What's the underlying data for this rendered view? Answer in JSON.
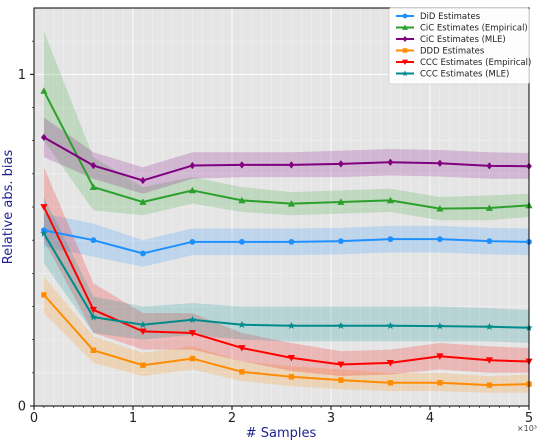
{
  "chart_data": {
    "type": "line",
    "title": "",
    "xlabel": "# Samples",
    "ylabel": "Relative abs. bias",
    "x_multiplier_label": "×10³",
    "xlim": [
      0,
      5
    ],
    "ylim": [
      0,
      1.2
    ],
    "x_ticks": [
      "0",
      "1",
      "2",
      "3",
      "4",
      "5"
    ],
    "y_ticks": [
      "0",
      "1"
    ],
    "grid": true,
    "legend_position": "top-right",
    "x": [
      0.1,
      0.6,
      1.1,
      1.6,
      2.1,
      2.6,
      3.1,
      3.6,
      4.1,
      4.6,
      5.0
    ],
    "series": [
      {
        "name": "DiD Estimates",
        "color": "#1e90ff",
        "marker": "circle",
        "values": [
          0.53,
          0.5,
          0.46,
          0.495,
          0.495,
          0.495,
          0.497,
          0.503,
          0.503,
          0.497,
          0.495
        ],
        "lower": [
          0.48,
          0.45,
          0.42,
          0.455,
          0.455,
          0.455,
          0.457,
          0.463,
          0.463,
          0.457,
          0.455
        ],
        "upper": [
          0.58,
          0.55,
          0.5,
          0.535,
          0.535,
          0.535,
          0.537,
          0.543,
          0.543,
          0.537,
          0.535
        ]
      },
      {
        "name": "CiC Estimates (Empirical)",
        "color": "#2ca02c",
        "marker": "triangle",
        "values": [
          0.95,
          0.66,
          0.615,
          0.65,
          0.62,
          0.61,
          0.615,
          0.62,
          0.595,
          0.597,
          0.605
        ],
        "lower": [
          0.8,
          0.59,
          0.575,
          0.61,
          0.585,
          0.575,
          0.58,
          0.585,
          0.56,
          0.56,
          0.57
        ],
        "upper": [
          1.13,
          0.75,
          0.66,
          0.69,
          0.66,
          0.645,
          0.65,
          0.655,
          0.63,
          0.635,
          0.64
        ]
      },
      {
        "name": "CiC Estimates (MLE)",
        "color": "#800080",
        "marker": "diamond",
        "values": [
          0.81,
          0.725,
          0.68,
          0.725,
          0.727,
          0.727,
          0.73,
          0.735,
          0.732,
          0.724,
          0.723
        ],
        "lower": [
          0.75,
          0.685,
          0.64,
          0.685,
          0.69,
          0.69,
          0.69,
          0.695,
          0.692,
          0.685,
          0.685
        ],
        "upper": [
          0.87,
          0.765,
          0.72,
          0.765,
          0.765,
          0.765,
          0.77,
          0.775,
          0.772,
          0.765,
          0.763
        ]
      },
      {
        "name": "DDD Estimates",
        "color": "#ff8c00",
        "marker": "square",
        "values": [
          0.335,
          0.168,
          0.123,
          0.143,
          0.103,
          0.088,
          0.078,
          0.07,
          0.07,
          0.063,
          0.066
        ],
        "lower": [
          0.28,
          0.13,
          0.09,
          0.11,
          0.075,
          0.06,
          0.05,
          0.045,
          0.045,
          0.04,
          0.04
        ],
        "upper": [
          0.39,
          0.21,
          0.16,
          0.18,
          0.135,
          0.12,
          0.11,
          0.1,
          0.1,
          0.09,
          0.095
        ]
      },
      {
        "name": "CCC Estimates (Empirical)",
        "color": "#ff0000",
        "marker": "triangle-down",
        "values": [
          0.6,
          0.29,
          0.225,
          0.22,
          0.175,
          0.145,
          0.125,
          0.13,
          0.15,
          0.138,
          0.134
        ],
        "lower": [
          0.5,
          0.22,
          0.17,
          0.17,
          0.135,
          0.105,
          0.09,
          0.095,
          0.11,
          0.1,
          0.1
        ],
        "upper": [
          0.72,
          0.37,
          0.28,
          0.28,
          0.22,
          0.19,
          0.165,
          0.17,
          0.19,
          0.18,
          0.175
        ]
      },
      {
        "name": "CCC Estimates (MLE)",
        "color": "#008b8b",
        "marker": "star",
        "values": [
          0.52,
          0.268,
          0.245,
          0.26,
          0.245,
          0.242,
          0.242,
          0.242,
          0.241,
          0.239,
          0.236
        ],
        "lower": [
          0.43,
          0.22,
          0.2,
          0.215,
          0.2,
          0.195,
          0.195,
          0.195,
          0.195,
          0.195,
          0.19
        ],
        "upper": [
          0.63,
          0.33,
          0.3,
          0.31,
          0.3,
          0.3,
          0.3,
          0.3,
          0.3,
          0.295,
          0.29
        ]
      }
    ]
  }
}
